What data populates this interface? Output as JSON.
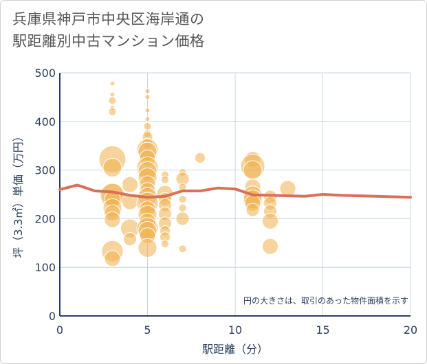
{
  "title": {
    "line1": "兵庫県神戸市中央区海岸通の",
    "line2": "駅距離別中古マンション価格"
  },
  "chart_data": {
    "type": "scatter",
    "xlabel": "駅距離（分）",
    "ylabel": "坪（3.3㎡）単価（万円）",
    "xlim": [
      0,
      20
    ],
    "ylim": [
      0,
      500
    ],
    "xticks": [
      "0",
      "5",
      "10",
      "15",
      "20"
    ],
    "yticks": [
      "0",
      "100",
      "200",
      "300",
      "400",
      "500"
    ],
    "note": "円の大きさは、取引のあった物件面積を示す",
    "grid": true,
    "colors": {
      "bubble": "#f0b04f",
      "line": "#d9705a",
      "grid": "#c8d4e3",
      "axis": "#2a3f5f"
    },
    "bubbles": [
      {
        "x": 3,
        "y": 478,
        "s": 1
      },
      {
        "x": 3,
        "y": 455,
        "s": 1
      },
      {
        "x": 3,
        "y": 443,
        "s": 2
      },
      {
        "x": 3,
        "y": 428,
        "s": 1
      },
      {
        "x": 3,
        "y": 420,
        "s": 2
      },
      {
        "x": 3,
        "y": 322,
        "s": 9
      },
      {
        "x": 3,
        "y": 305,
        "s": 6
      },
      {
        "x": 3,
        "y": 250,
        "s": 7
      },
      {
        "x": 3,
        "y": 248,
        "s": 8
      },
      {
        "x": 3,
        "y": 240,
        "s": 5
      },
      {
        "x": 3,
        "y": 222,
        "s": 6
      },
      {
        "x": 3,
        "y": 212,
        "s": 5
      },
      {
        "x": 3,
        "y": 198,
        "s": 5
      },
      {
        "x": 3,
        "y": 133,
        "s": 7
      },
      {
        "x": 3,
        "y": 118,
        "s": 5
      },
      {
        "x": 4,
        "y": 270,
        "s": 5
      },
      {
        "x": 4,
        "y": 235,
        "s": 5
      },
      {
        "x": 4,
        "y": 180,
        "s": 6
      },
      {
        "x": 4,
        "y": 158,
        "s": 4
      },
      {
        "x": 5,
        "y": 462,
        "s": 1
      },
      {
        "x": 5,
        "y": 450,
        "s": 1
      },
      {
        "x": 5,
        "y": 423,
        "s": 1
      },
      {
        "x": 5,
        "y": 405,
        "s": 1
      },
      {
        "x": 5,
        "y": 390,
        "s": 2
      },
      {
        "x": 5,
        "y": 375,
        "s": 2
      },
      {
        "x": 5,
        "y": 368,
        "s": 3
      },
      {
        "x": 5,
        "y": 355,
        "s": 3
      },
      {
        "x": 5,
        "y": 342,
        "s": 7
      },
      {
        "x": 5,
        "y": 338,
        "s": 6
      },
      {
        "x": 5,
        "y": 325,
        "s": 5
      },
      {
        "x": 5,
        "y": 305,
        "s": 7
      },
      {
        "x": 5,
        "y": 298,
        "s": 6
      },
      {
        "x": 5,
        "y": 285,
        "s": 6
      },
      {
        "x": 5,
        "y": 272,
        "s": 5
      },
      {
        "x": 5,
        "y": 258,
        "s": 5
      },
      {
        "x": 5,
        "y": 245,
        "s": 6
      },
      {
        "x": 5,
        "y": 232,
        "s": 7
      },
      {
        "x": 5,
        "y": 220,
        "s": 5
      },
      {
        "x": 5,
        "y": 208,
        "s": 6
      },
      {
        "x": 5,
        "y": 195,
        "s": 5
      },
      {
        "x": 5,
        "y": 180,
        "s": 7
      },
      {
        "x": 5,
        "y": 175,
        "s": 6
      },
      {
        "x": 5,
        "y": 165,
        "s": 5
      },
      {
        "x": 5,
        "y": 140,
        "s": 6
      },
      {
        "x": 6,
        "y": 290,
        "s": 2
      },
      {
        "x": 6,
        "y": 280,
        "s": 2
      },
      {
        "x": 6,
        "y": 252,
        "s": 5
      },
      {
        "x": 6,
        "y": 240,
        "s": 4
      },
      {
        "x": 6,
        "y": 228,
        "s": 4
      },
      {
        "x": 6,
        "y": 210,
        "s": 4
      },
      {
        "x": 6,
        "y": 190,
        "s": 4
      },
      {
        "x": 6,
        "y": 175,
        "s": 3
      },
      {
        "x": 6,
        "y": 162,
        "s": 3
      },
      {
        "x": 6,
        "y": 148,
        "s": 2
      },
      {
        "x": 7,
        "y": 295,
        "s": 2
      },
      {
        "x": 7,
        "y": 282,
        "s": 4
      },
      {
        "x": 7,
        "y": 265,
        "s": 2
      },
      {
        "x": 7,
        "y": 240,
        "s": 2
      },
      {
        "x": 7,
        "y": 222,
        "s": 2
      },
      {
        "x": 7,
        "y": 200,
        "s": 4
      },
      {
        "x": 7,
        "y": 138,
        "s": 2
      },
      {
        "x": 8,
        "y": 325,
        "s": 3
      },
      {
        "x": 11,
        "y": 322,
        "s": 5
      },
      {
        "x": 11,
        "y": 308,
        "s": 8
      },
      {
        "x": 11,
        "y": 300,
        "s": 6
      },
      {
        "x": 11,
        "y": 265,
        "s": 5
      },
      {
        "x": 11,
        "y": 248,
        "s": 6
      },
      {
        "x": 11,
        "y": 240,
        "s": 6
      },
      {
        "x": 11,
        "y": 232,
        "s": 5
      },
      {
        "x": 11,
        "y": 218,
        "s": 4
      },
      {
        "x": 12,
        "y": 245,
        "s": 4
      },
      {
        "x": 12,
        "y": 232,
        "s": 4
      },
      {
        "x": 12,
        "y": 215,
        "s": 4
      },
      {
        "x": 12,
        "y": 195,
        "s": 5
      },
      {
        "x": 12,
        "y": 143,
        "s": 5
      },
      {
        "x": 13,
        "y": 262,
        "s": 5
      }
    ],
    "series": [
      {
        "x": [
          0,
          1,
          2,
          3,
          4,
          5,
          6,
          7,
          8,
          9,
          10,
          11,
          12,
          13,
          14,
          15,
          16,
          17,
          18,
          19,
          20
        ],
        "values": [
          260,
          269,
          257,
          255,
          248,
          244,
          246,
          257,
          257,
          263,
          261,
          249,
          248,
          247,
          246,
          250,
          248,
          247,
          246,
          245,
          244
        ]
      }
    ]
  }
}
